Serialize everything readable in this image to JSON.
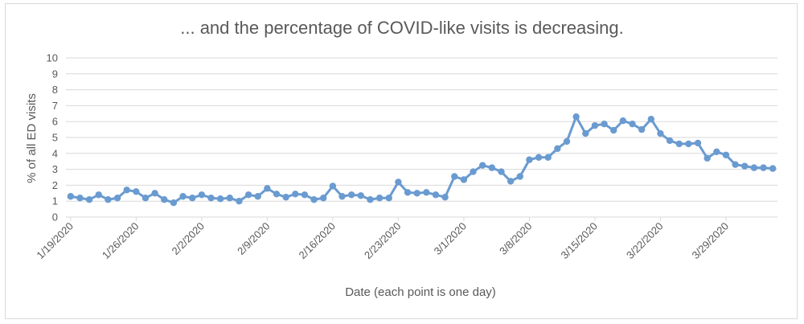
{
  "chart_data": {
    "type": "line",
    "title": "... and the percentage of COVID-like visits is decreasing.",
    "xlabel": "Date (each point is one day)",
    "ylabel": "% of all ED visits",
    "ylim": [
      0,
      10
    ],
    "yticks": [
      "0",
      "1",
      "2",
      "3",
      "4",
      "5",
      "6",
      "7",
      "8",
      "9",
      "10"
    ],
    "xtick_labels": [
      "1/19/2020",
      "1/26/2020",
      "2/2/2020",
      "2/9/2020",
      "2/16/2020",
      "2/23/2020",
      "3/1/2020",
      "3/8/2020",
      "3/15/2020",
      "3/22/2020",
      "3/29/2020"
    ],
    "grid": true,
    "legend": "none",
    "series_color": "#6a9bd0",
    "gridline_color": "#d9d9d9",
    "series": [
      {
        "values": [
          1.3,
          1.2,
          1.1,
          1.4,
          1.1,
          1.2,
          1.7,
          1.6,
          1.2,
          1.5,
          1.1,
          0.9,
          1.3,
          1.2,
          1.4,
          1.2,
          1.15,
          1.2,
          1.0,
          1.4,
          1.3,
          1.8,
          1.45,
          1.25,
          1.45,
          1.4,
          1.1,
          1.2,
          1.95,
          1.3,
          1.4,
          1.35,
          1.1,
          1.2,
          1.2,
          2.2,
          1.55,
          1.5,
          1.55,
          1.4,
          1.25,
          2.55,
          2.35,
          2.85,
          3.25,
          3.1,
          2.85,
          2.25,
          2.55,
          3.6,
          3.75,
          3.75,
          4.3,
          4.75,
          6.3,
          5.25,
          5.75,
          5.85,
          5.45,
          6.05,
          5.85,
          5.5,
          6.15,
          5.25,
          4.8,
          4.6,
          4.6,
          4.65,
          3.7,
          4.1,
          3.9,
          3.3,
          3.2,
          3.1,
          3.1,
          3.05
        ]
      }
    ]
  }
}
